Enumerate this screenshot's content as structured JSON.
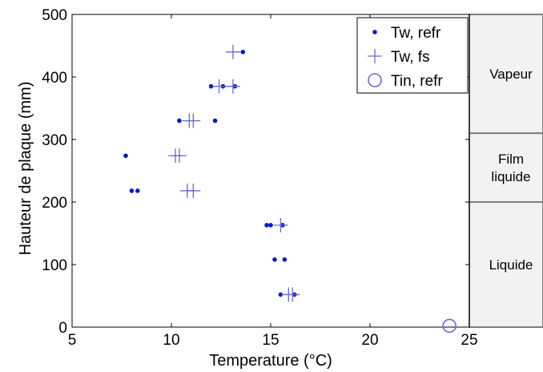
{
  "chart_data": {
    "type": "scatter",
    "xlabel": "Temperature (°C)",
    "ylabel": "Hauteur de plaque (mm)",
    "xlim": [
      5,
      25
    ],
    "ylim": [
      0,
      500
    ],
    "xticks": [
      5,
      10,
      15,
      20,
      25
    ],
    "yticks": [
      0,
      100,
      200,
      300,
      400,
      500
    ],
    "grid": false,
    "legend_position": "top-right",
    "series": [
      {
        "name": "Tw, refr",
        "marker": "dot",
        "color": "#0a1eb4",
        "points": [
          [
            13.6,
            440
          ],
          [
            12.0,
            385
          ],
          [
            12.6,
            385
          ],
          [
            13.2,
            385
          ],
          [
            10.4,
            330
          ],
          [
            12.2,
            330
          ],
          [
            7.7,
            274
          ],
          [
            8.0,
            218
          ],
          [
            8.3,
            218
          ],
          [
            14.8,
            163
          ],
          [
            15.0,
            163
          ],
          [
            15.6,
            163
          ],
          [
            15.2,
            108
          ],
          [
            15.7,
            108
          ],
          [
            15.5,
            52
          ],
          [
            16.2,
            52
          ]
        ]
      },
      {
        "name": "Tw, fs",
        "marker": "plus",
        "color": "#6a6acd",
        "points": [
          [
            13.1,
            440
          ],
          [
            12.4,
            385
          ],
          [
            13.1,
            385
          ],
          [
            10.9,
            330
          ],
          [
            11.1,
            330
          ],
          [
            10.2,
            274
          ],
          [
            10.4,
            274
          ],
          [
            10.8,
            218
          ],
          [
            11.1,
            218
          ],
          [
            15.5,
            163
          ],
          [
            15.9,
            52
          ],
          [
            16.1,
            52
          ]
        ]
      },
      {
        "name": "Tin, refr",
        "marker": "circle",
        "color": "#6a6acd",
        "points": [
          [
            24.0,
            2
          ]
        ]
      }
    ],
    "zones": [
      {
        "label": "Vapeur",
        "from": 310,
        "to": 500
      },
      {
        "label": "Film liquide",
        "lines": [
          "Film",
          "liquide"
        ],
        "from": 200,
        "to": 310
      },
      {
        "label": "Liquide",
        "from": 0,
        "to": 200
      }
    ]
  }
}
